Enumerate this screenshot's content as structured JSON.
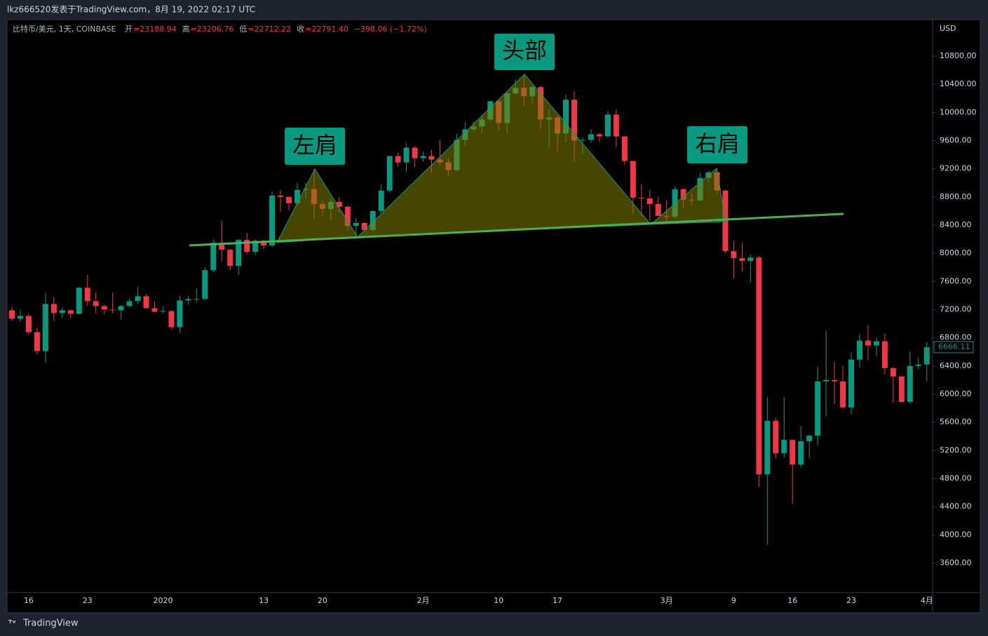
{
  "attribution": "lkz666520发表于TradingView.com，8月 19, 2022 02:17 UTC",
  "footer": "TradingView",
  "chart_data": {
    "type": "candlestick",
    "symbol": "比特币/美元, 1天, COINBASE",
    "ohlc_legend": [
      {
        "label": "开",
        "value": "=23188.94"
      },
      {
        "label": "高",
        "value": "=23206.76"
      },
      {
        "label": "低",
        "value": "=22712.22"
      },
      {
        "label": "收",
        "value": "=22791.40"
      }
    ],
    "change": "−398.06 (−1.72%)",
    "currency": "USD",
    "annotations": [
      "左肩",
      "头部",
      "右肩"
    ],
    "up_color": "#089981",
    "down_color": "#f23645",
    "grid": false,
    "ylim": [
      3182,
      11298
    ],
    "yticks": [
      {
        "value": 3600,
        "label": "3600.00"
      },
      {
        "value": 4000,
        "label": "4000.00"
      },
      {
        "value": 4400,
        "label": "4400.00"
      },
      {
        "value": 4800,
        "label": "4800.00"
      },
      {
        "value": 5200,
        "label": "5200.00"
      },
      {
        "value": 5600,
        "label": "5600.00"
      },
      {
        "value": 6000,
        "label": "6000.00"
      },
      {
        "value": 6400,
        "label": "6400.00"
      },
      {
        "value": 6800,
        "label": "6800.00"
      },
      {
        "value": 7200,
        "label": "7200.00"
      },
      {
        "value": 7600,
        "label": "7600.00"
      },
      {
        "value": 8000,
        "label": "8000.00"
      },
      {
        "value": 8400,
        "label": "8400.00"
      },
      {
        "value": 8800,
        "label": "8800.00"
      },
      {
        "value": 9200,
        "label": "9200.00"
      },
      {
        "value": 9600,
        "label": "9600.00"
      },
      {
        "value": 10000,
        "label": "10000.00"
      },
      {
        "value": 10400,
        "label": "10400.00"
      },
      {
        "value": 10800,
        "label": "10800.00"
      }
    ],
    "categories": [
      null,
      null,
      "16",
      null,
      null,
      null,
      null,
      null,
      null,
      "23",
      null,
      null,
      null,
      null,
      null,
      null,
      null,
      null,
      "2020",
      null,
      null,
      null,
      null,
      null,
      null,
      null,
      null,
      null,
      null,
      null,
      "13",
      null,
      null,
      null,
      null,
      null,
      null,
      "20",
      null,
      null,
      null,
      null,
      null,
      null,
      null,
      null,
      null,
      null,
      null,
      "2月",
      null,
      null,
      null,
      null,
      null,
      null,
      null,
      null,
      "10",
      null,
      null,
      null,
      null,
      null,
      null,
      "17",
      null,
      null,
      null,
      null,
      null,
      null,
      null,
      null,
      null,
      null,
      null,
      null,
      "3月",
      null,
      null,
      null,
      null,
      null,
      null,
      null,
      "9",
      null,
      null,
      null,
      null,
      null,
      null,
      "16",
      null,
      null,
      null,
      null,
      null,
      null,
      "23",
      null,
      null,
      null,
      null,
      null,
      null,
      null,
      null,
      "4月"
    ],
    "open": [
      7190,
      7070,
      7110,
      6880,
      6610,
      7280,
      7150,
      7190,
      7140,
      7510,
      7320,
      7250,
      7200,
      7190,
      7250,
      7320,
      7390,
      7220,
      7170,
      7180,
      6950,
      7330,
      7350,
      7350,
      7760,
      8150,
      8050,
      7820,
      8190,
      8020,
      8180,
      8110,
      8820,
      8800,
      8710,
      8900,
      8910,
      8700,
      8630,
      8730,
      8660,
      8390,
      8430,
      8330,
      8600,
      8890,
      9380,
      9290,
      9500,
      9350,
      9380,
      9330,
      9290,
      9180,
      9610,
      9760,
      9800,
      9900,
      10160,
      9850,
      10270,
      10350,
      10230,
      10360,
      9900,
      9930,
      9700,
      10180,
      9600,
      9610,
      9690,
      9660,
      9970,
      9660,
      9310,
      8790,
      8780,
      8700,
      8530,
      8520,
      8910,
      8760,
      8750,
      9070,
      9150,
      8890,
      8030,
      7930,
      7890,
      7940,
      4860,
      5620,
      5160,
      5350,
      5000,
      5330,
      5410,
      6180,
      6200,
      6180,
      5810,
      6490,
      6760,
      6690,
      6750,
      6370,
      6250,
      5890,
      6400,
      6420
    ],
    "high": [
      7240,
      7190,
      7140,
      6940,
      7440,
      7380,
      7220,
      7200,
      7520,
      7690,
      7440,
      7270,
      7440,
      7270,
      7360,
      7520,
      7420,
      7320,
      7250,
      7180,
      7400,
      7400,
      7500,
      7800,
      8200,
      8460,
      8060,
      8200,
      8290,
      8200,
      8200,
      8880,
      8900,
      8800,
      9000,
      9000,
      9200,
      8750,
      8780,
      8800,
      8680,
      8500,
      8440,
      8610,
      8980,
      9390,
      9430,
      9570,
      9520,
      9450,
      9470,
      9610,
      9350,
      9700,
      9860,
      9870,
      9950,
      10160,
      10180,
      10280,
      10470,
      10520,
      10390,
      10380,
      10050,
      9960,
      10250,
      10300,
      9650,
      9770,
      9700,
      10020,
      10040,
      9660,
      9310,
      8980,
      8900,
      8800,
      8760,
      8950,
      8920,
      8850,
      9140,
      9170,
      9200,
      8900,
      8180,
      8150,
      7980,
      7960,
      5960,
      5660,
      5960,
      5350,
      5550,
      5420,
      6390,
      6900,
      6460,
      6400,
      6600,
      6850,
      6980,
      6800,
      6860,
      6380,
      6260,
      6610,
      6520,
      6740
    ],
    "low": [
      7040,
      7030,
      6850,
      6560,
      6440,
      7040,
      7080,
      7080,
      7130,
      7260,
      7150,
      7130,
      7150,
      7060,
      7240,
      7280,
      7210,
      7160,
      7150,
      6920,
      6870,
      7270,
      7310,
      7350,
      7730,
      7880,
      7760,
      7690,
      7990,
      7970,
      8060,
      8090,
      8590,
      8610,
      8680,
      8780,
      8500,
      8530,
      8470,
      8580,
      8320,
      8260,
      8300,
      8300,
      8570,
      8860,
      9230,
      9160,
      9230,
      9300,
      9150,
      9240,
      9100,
      9160,
      9530,
      9720,
      9700,
      9880,
      9740,
      9700,
      10250,
      10100,
      10130,
      9770,
      9500,
      9450,
      9580,
      9300,
      9420,
      9570,
      9580,
      9650,
      9510,
      9260,
      8560,
      8530,
      8460,
      8540,
      8420,
      8500,
      8650,
      8680,
      8750,
      9010,
      8850,
      8000,
      7640,
      7740,
      7590,
      4680,
      3860,
      5090,
      5100,
      4440,
      4960,
      5090,
      5270,
      5680,
      5860,
      5790,
      5710,
      6380,
      6480,
      6540,
      6280,
      5870,
      5880,
      5860,
      6350,
      6180
    ],
    "close": [
      7070,
      7110,
      6880,
      6610,
      7280,
      7150,
      7190,
      7140,
      7510,
      7320,
      7250,
      7200,
      7190,
      7250,
      7320,
      7390,
      7220,
      7170,
      7180,
      6950,
      7330,
      7350,
      7350,
      7760,
      8150,
      8050,
      7820,
      8190,
      8020,
      8180,
      8110,
      8820,
      8800,
      8710,
      8900,
      8910,
      8700,
      8630,
      8730,
      8660,
      8390,
      8430,
      8330,
      8600,
      8890,
      9380,
      9290,
      9500,
      9350,
      9380,
      9330,
      9290,
      9180,
      9610,
      9760,
      9800,
      9900,
      10160,
      9850,
      10270,
      10350,
      10230,
      10360,
      9900,
      9930,
      9700,
      10180,
      9600,
      9610,
      9690,
      9660,
      9970,
      9660,
      9310,
      8790,
      8780,
      8700,
      8530,
      8520,
      8910,
      8760,
      8750,
      9070,
      9150,
      8890,
      8030,
      7930,
      7890,
      7940,
      4860,
      5620,
      5160,
      5350,
      5000,
      5330,
      5410,
      6180,
      6200,
      6180,
      5810,
      6490,
      6760,
      6690,
      6750,
      6370,
      6250,
      5890,
      6400,
      6420,
      6666.11
    ]
  }
}
